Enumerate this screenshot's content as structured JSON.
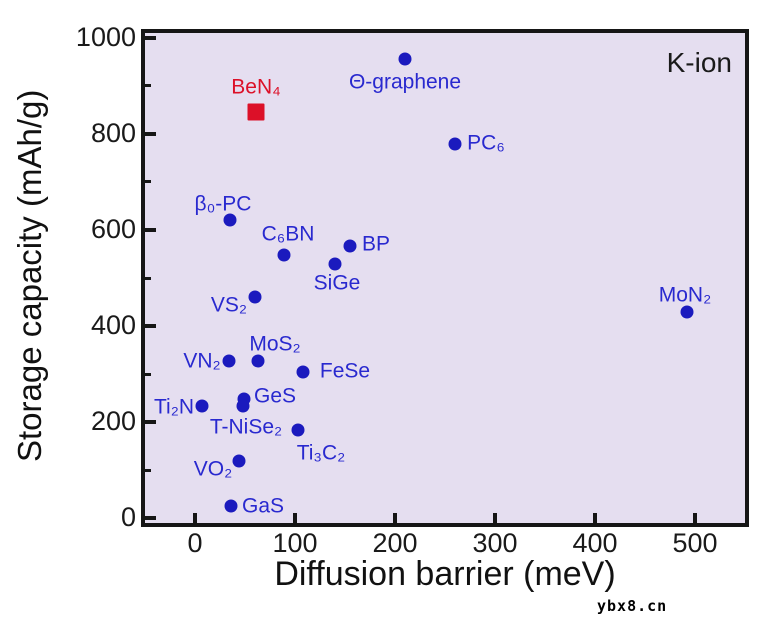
{
  "figure": {
    "watermark": "ybx8.cn"
  },
  "colors": {
    "point_blue": "#1b1abe",
    "label_blue": "#2929cf",
    "highlight_red": "#dc1028",
    "plot_background": "#e5def0",
    "frame": "#161616",
    "axis_text": "#1a1a1a"
  },
  "chart_data": {
    "type": "scatter",
    "annotation": "K-ion",
    "xlabel": "Diffusion barrier (meV)",
    "ylabel": "Storage capacity (mAh/g)",
    "xlim": [
      -50,
      550
    ],
    "ylim": [
      -10,
      1010
    ],
    "xticks": [
      0,
      100,
      200,
      300,
      400,
      500
    ],
    "yticks": [
      0,
      200,
      400,
      600,
      800,
      1000
    ],
    "yticks_minor": [
      100,
      300,
      500,
      700,
      900
    ],
    "grid": false,
    "legend_position": "none",
    "points": [
      {
        "label": "Θ-graphene",
        "x": 210,
        "y": 955,
        "marker": "circle",
        "color": "blue",
        "label_offset": [
          0,
          23
        ]
      },
      {
        "label": "BeN₄",
        "x": 61,
        "y": 845,
        "marker": "square",
        "color": "red",
        "label_offset": [
          0,
          -25
        ]
      },
      {
        "label": "PC₆",
        "x": 260,
        "y": 778,
        "marker": "circle",
        "color": "blue",
        "label_offset": [
          31,
          -1
        ]
      },
      {
        "label": "β₀-PC",
        "x": 35,
        "y": 620,
        "marker": "circle",
        "color": "blue",
        "label_offset": [
          -7,
          -16
        ]
      },
      {
        "label": "C₆BN",
        "x": 89,
        "y": 547,
        "marker": "circle",
        "color": "blue",
        "label_offset": [
          4,
          -21
        ]
      },
      {
        "label": "BP",
        "x": 155,
        "y": 567,
        "marker": "circle",
        "color": "blue",
        "label_offset": [
          26,
          -2
        ]
      },
      {
        "label": "SiGe",
        "x": 140,
        "y": 530,
        "marker": "circle",
        "color": "blue",
        "label_offset": [
          2,
          19
        ]
      },
      {
        "label": "VS₂",
        "x": 60,
        "y": 460,
        "marker": "circle",
        "color": "blue",
        "label_offset": [
          -26,
          8
        ]
      },
      {
        "label": "MoN₂",
        "x": 492,
        "y": 429,
        "marker": "circle",
        "color": "blue",
        "label_offset": [
          -2,
          -17
        ]
      },
      {
        "label": "VN₂",
        "x": 34,
        "y": 328,
        "marker": "circle",
        "color": "blue",
        "label_offset": [
          -27,
          0
        ]
      },
      {
        "label": "MoS₂",
        "x": 63,
        "y": 327,
        "marker": "circle",
        "color": "blue",
        "label_offset": [
          17,
          -17
        ]
      },
      {
        "label": "FeSe",
        "x": 108,
        "y": 305,
        "marker": "circle",
        "color": "blue",
        "label_offset": [
          42,
          -1
        ]
      },
      {
        "label": "Ti₂N",
        "x": 7,
        "y": 233,
        "marker": "circle",
        "color": "blue",
        "label_offset": [
          -28,
          1
        ]
      },
      {
        "label": "GeS",
        "x": 49,
        "y": 249,
        "marker": "circle",
        "color": "blue",
        "label_offset": [
          31,
          -3
        ]
      },
      {
        "label": "T-NiSe₂",
        "x": 48,
        "y": 233,
        "marker": "circle",
        "color": "blue",
        "label_offset": [
          3,
          21
        ]
      },
      {
        "label": "Ti₃C₂",
        "x": 103,
        "y": 183,
        "marker": "circle",
        "color": "blue",
        "label_offset": [
          23,
          23
        ]
      },
      {
        "label": "VO₂",
        "x": 44,
        "y": 120,
        "marker": "circle",
        "color": "blue",
        "label_offset": [
          -26,
          8
        ]
      },
      {
        "label": "GaS",
        "x": 36,
        "y": 25,
        "marker": "circle",
        "color": "blue",
        "label_offset": [
          32,
          0
        ]
      }
    ]
  }
}
